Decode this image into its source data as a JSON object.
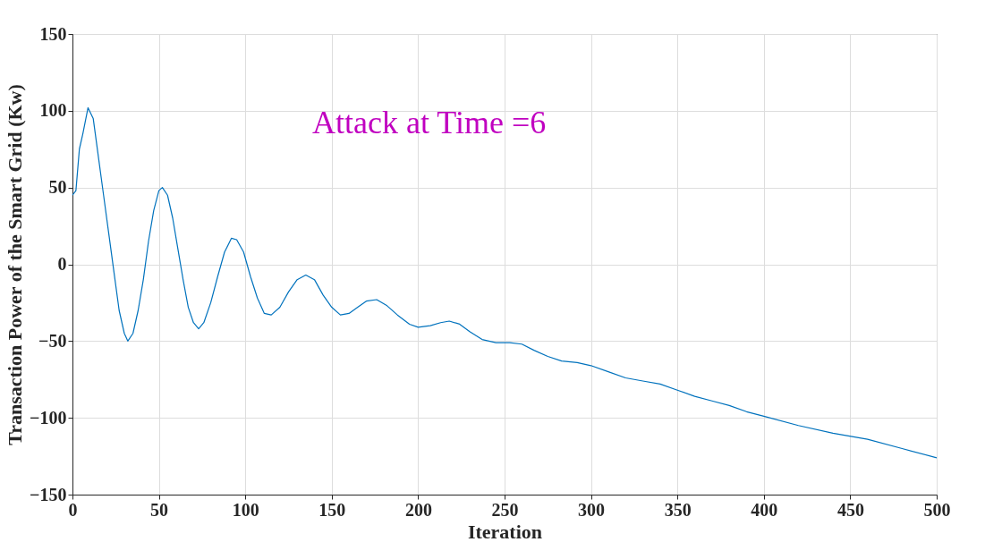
{
  "chart_data": {
    "type": "line",
    "xlabel": "Iteration",
    "ylabel": "Transaction Power of the Smart Grid (Kw)",
    "annotations": [
      "Attack at Time =6"
    ],
    "x": [
      0,
      2,
      4,
      6,
      9,
      12,
      15,
      18,
      21,
      24,
      27,
      30,
      32,
      35,
      38,
      41,
      44,
      47,
      50,
      52,
      55,
      58,
      61,
      64,
      67,
      70,
      73,
      76,
      80,
      84,
      88,
      92,
      95,
      99,
      103,
      107,
      111,
      115,
      120,
      125,
      130,
      135,
      140,
      145,
      150,
      155,
      160,
      165,
      170,
      176,
      182,
      188,
      195,
      200,
      207,
      213,
      218,
      224,
      230,
      237,
      245,
      253,
      260,
      267,
      275,
      283,
      292,
      300,
      310,
      320,
      330,
      340,
      350,
      360,
      370,
      380,
      390,
      400,
      420,
      440,
      460,
      480,
      500
    ],
    "series": [
      {
        "color": "#0072bd",
        "values": [
          45,
          48,
          75,
          85,
          102,
          95,
          70,
          45,
          20,
          -5,
          -30,
          -45,
          -50,
          -45,
          -30,
          -10,
          15,
          35,
          48,
          50,
          45,
          30,
          10,
          -10,
          -28,
          -38,
          -42,
          -38,
          -25,
          -8,
          8,
          17,
          16,
          8,
          -8,
          -22,
          -32,
          -33,
          -28,
          -18,
          -10,
          -7,
          -10,
          -20,
          -28,
          -33,
          -32,
          -28,
          -24,
          -23,
          -27,
          -33,
          -39,
          -41,
          -40,
          -38,
          -37,
          -39,
          -44,
          -49,
          -51,
          -51,
          -52,
          -56,
          -60,
          -63,
          -64,
          -66,
          -70,
          -74,
          -76,
          -78,
          -82,
          -86,
          -89,
          -92,
          -96,
          -99,
          -105,
          -110,
          -114,
          -120,
          -126
        ]
      }
    ],
    "xlim": [
      0,
      500
    ],
    "xticks": [
      0,
      50,
      100,
      150,
      200,
      250,
      300,
      350,
      400,
      450,
      500
    ],
    "ylim": [
      -150,
      150
    ],
    "yticks": [
      -150,
      -100,
      -50,
      0,
      50,
      100,
      150
    ],
    "grid": true,
    "legend": false
  }
}
